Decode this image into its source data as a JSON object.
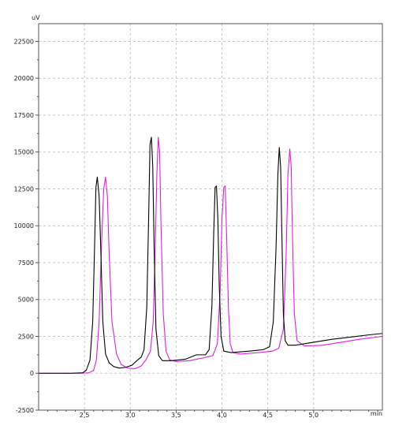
{
  "chart_data": {
    "type": "line",
    "xlabel": "min",
    "ylabel": "uV",
    "xlim": [
      2.0,
      5.75
    ],
    "ylim": [
      -2500,
      23700
    ],
    "grid": true,
    "x_ticks": [
      2.5,
      3.0,
      3.5,
      4.0,
      4.5,
      5.0
    ],
    "x_tick_labels": [
      "2,5",
      "3,0",
      "3,5",
      "4,0",
      "4,5",
      "5,0"
    ],
    "y_ticks": [
      -2500,
      0,
      2500,
      5000,
      7500,
      10000,
      12500,
      15000,
      17500,
      20000,
      22500
    ],
    "y_tick_labels": [
      "-2500",
      "0",
      "2500",
      "5000",
      "7500",
      "10000",
      "12500",
      "15000",
      "17500",
      "20000",
      "22500"
    ],
    "series": [
      {
        "color": "#000000",
        "x": [
          2.0,
          2.35,
          2.48,
          2.52,
          2.56,
          2.59,
          2.61,
          2.625,
          2.64,
          2.66,
          2.68,
          2.7,
          2.73,
          2.77,
          2.82,
          2.88,
          2.95,
          3.02,
          3.08,
          3.12,
          3.15,
          3.18,
          3.2,
          3.215,
          3.23,
          3.245,
          3.26,
          3.28,
          3.31,
          3.35,
          3.45,
          3.6,
          3.72,
          3.82,
          3.86,
          3.89,
          3.91,
          3.925,
          3.94,
          3.955,
          3.97,
          3.99,
          4.02,
          4.1,
          4.3,
          4.45,
          4.52,
          4.56,
          4.59,
          4.61,
          4.625,
          4.64,
          4.655,
          4.67,
          4.69,
          4.72,
          4.8,
          5.0,
          5.2,
          5.4,
          5.6,
          5.75
        ],
        "y": [
          0,
          0,
          30,
          200,
          900,
          3500,
          8500,
          12600,
          13300,
          12000,
          8000,
          3500,
          1300,
          700,
          450,
          350,
          400,
          550,
          900,
          1100,
          1600,
          4500,
          10500,
          15500,
          16000,
          14000,
          8500,
          3000,
          1200,
          850,
          850,
          950,
          1250,
          1250,
          1600,
          4500,
          9500,
          12600,
          12700,
          10500,
          6000,
          2500,
          1500,
          1400,
          1500,
          1600,
          1800,
          3500,
          8500,
          13500,
          15300,
          14000,
          9000,
          4000,
          2200,
          1900,
          1900,
          2100,
          2300,
          2450,
          2600,
          2700
        ]
      },
      {
        "color": "#e020e0",
        "x": [
          2.0,
          2.45,
          2.55,
          2.6,
          2.63,
          2.66,
          2.685,
          2.71,
          2.73,
          2.75,
          2.77,
          2.8,
          2.85,
          2.9,
          2.97,
          3.05,
          3.12,
          3.17,
          3.22,
          3.25,
          3.27,
          3.29,
          3.305,
          3.32,
          3.335,
          3.36,
          3.39,
          3.43,
          3.5,
          3.65,
          3.8,
          3.9,
          3.95,
          3.98,
          4.0,
          4.02,
          4.035,
          4.05,
          4.07,
          4.09,
          4.12,
          4.2,
          4.4,
          4.55,
          4.62,
          4.67,
          4.7,
          4.72,
          4.74,
          4.755,
          4.77,
          4.79,
          4.82,
          4.9,
          5.1,
          5.3,
          5.5,
          5.75
        ],
        "y": [
          0,
          0,
          30,
          200,
          900,
          3500,
          8500,
          12500,
          13300,
          12000,
          8000,
          3500,
          1300,
          600,
          350,
          300,
          500,
          900,
          1500,
          3500,
          8000,
          13500,
          16000,
          15000,
          10000,
          4000,
          1500,
          900,
          800,
          850,
          1050,
          1200,
          2000,
          5500,
          10500,
          12600,
          12700,
          9500,
          4500,
          2000,
          1400,
          1300,
          1400,
          1500,
          1700,
          3000,
          8000,
          13500,
          15200,
          14000,
          9000,
          4000,
          2200,
          1850,
          1900,
          2100,
          2300,
          2500
        ]
      }
    ]
  }
}
